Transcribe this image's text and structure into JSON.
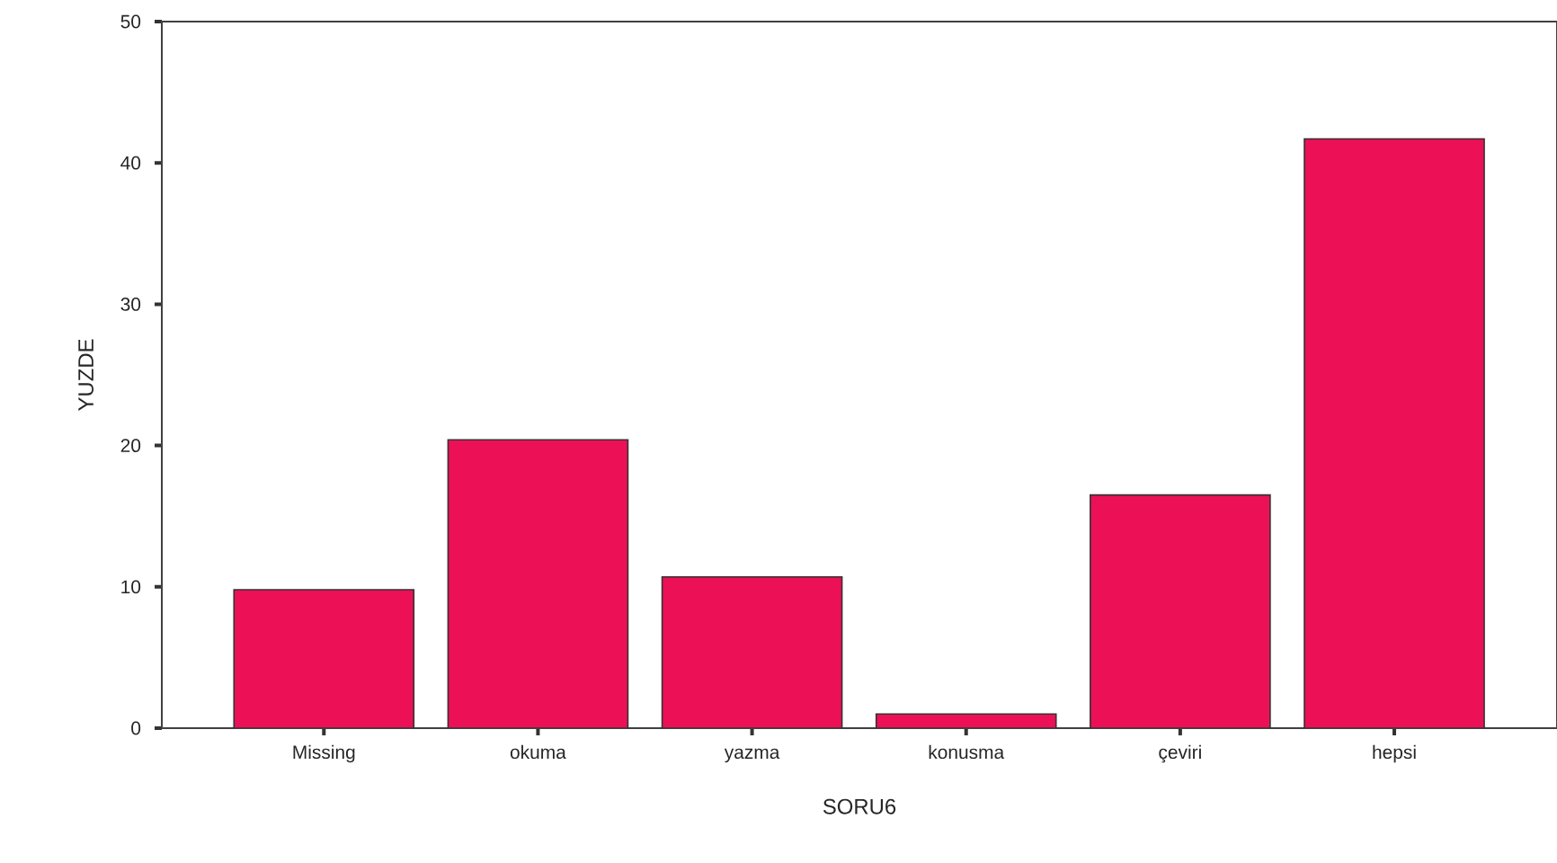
{
  "chart_data": {
    "type": "bar",
    "xlabel": "SORU6",
    "ylabel": "YUZDE",
    "categories": [
      "Missing",
      "okuma",
      "yazma",
      "konusma",
      "çeviri",
      "hepsi"
    ],
    "values": [
      9.8,
      20.4,
      10.7,
      1.0,
      16.5,
      41.7
    ],
    "color": "#ec1157",
    "ylim": [
      0,
      50
    ],
    "yticks": [
      0,
      10,
      20,
      30,
      40,
      50
    ],
    "grid": false
  }
}
